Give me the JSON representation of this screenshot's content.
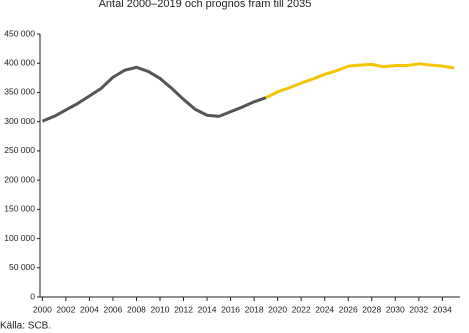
{
  "chart_data": {
    "type": "line",
    "title": "Antal 2000–2019 och prognos fram till 2035",
    "source": "Källa: SCB.",
    "x": [
      2000,
      2001,
      2002,
      2003,
      2004,
      2005,
      2006,
      2007,
      2008,
      2009,
      2010,
      2011,
      2012,
      2013,
      2014,
      2015,
      2016,
      2017,
      2018,
      2019,
      2020,
      2021,
      2022,
      2023,
      2024,
      2025,
      2026,
      2027,
      2028,
      2029,
      2030,
      2031,
      2032,
      2033,
      2034,
      2035
    ],
    "series": [
      {
        "color": "#555555",
        "values": [
          301000,
          309000,
          320000,
          331000,
          344000,
          357000,
          376000,
          388000,
          393000,
          386000,
          374000,
          357000,
          338000,
          321000,
          311000,
          309000,
          317000,
          325000,
          334000,
          341000,
          null,
          null,
          null,
          null,
          null,
          null,
          null,
          null,
          null,
          null,
          null,
          null,
          null,
          null,
          null,
          null
        ]
      },
      {
        "color": "#f5c400",
        "values": [
          null,
          null,
          null,
          null,
          null,
          null,
          null,
          null,
          null,
          null,
          null,
          null,
          null,
          null,
          null,
          null,
          null,
          null,
          null,
          341000,
          351000,
          358000,
          366000,
          373000,
          381000,
          387000,
          395000,
          397000,
          398000,
          394000,
          396000,
          396000,
          399000,
          397000,
          395000,
          392000
        ]
      }
    ],
    "xlim": [
      1999.8,
      2035.5
    ],
    "xticks": [
      2000,
      2002,
      2004,
      2006,
      2008,
      2010,
      2012,
      2014,
      2016,
      2018,
      2020,
      2022,
      2024,
      2026,
      2028,
      2030,
      2032,
      2034
    ],
    "ylim": [
      0,
      450000
    ],
    "yticks": [
      0,
      {
        "value": 50000,
        "label": "50 000"
      },
      {
        "value": 100000,
        "label": "100 000"
      },
      {
        "value": 150000,
        "label": "150 000"
      },
      {
        "value": 200000,
        "label": "200 000"
      },
      {
        "value": 250000,
        "label": "250 000"
      },
      {
        "value": 300000,
        "label": "300 000"
      },
      {
        "value": 350000,
        "label": "350 000"
      },
      {
        "value": 400000,
        "label": "400 000"
      },
      {
        "value": 450000,
        "label": "450 000"
      }
    ]
  }
}
